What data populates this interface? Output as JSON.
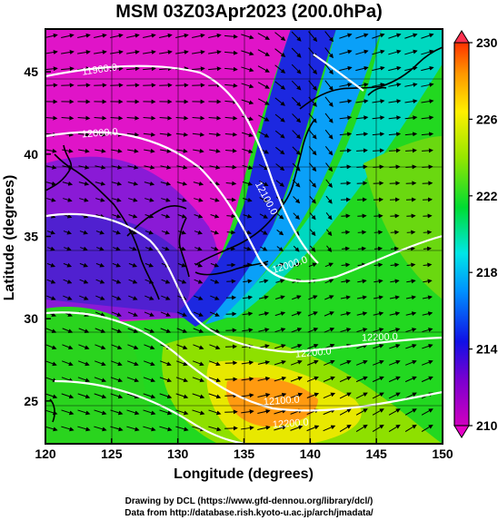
{
  "title": "MSM 03Z03Apr2023 (200.0hPa)",
  "axes": {
    "xlabel": "Longitude (degrees)",
    "ylabel": "Latitude  (degrees)",
    "x_ticks": [
      "120",
      "125",
      "130",
      "135",
      "140",
      "145",
      "150"
    ],
    "y_ticks": [
      "25",
      "30",
      "35",
      "40",
      "45"
    ],
    "xlim": [
      120,
      150
    ],
    "ylim": [
      22.4,
      47.6
    ]
  },
  "colorbar": {
    "tick_labels": [
      "230",
      "226",
      "222",
      "218",
      "214",
      "210"
    ],
    "range": [
      210,
      230
    ],
    "colors": [
      "#e600c8",
      "#9600d2",
      "#0a14e6",
      "#00b4ff",
      "#00e6c8",
      "#00dc32",
      "#96e600",
      "#fff000",
      "#ff9600",
      "#ff3200"
    ]
  },
  "contours": {
    "labels": [
      "11900.0",
      "12000.0",
      "12100.0",
      "12200.0",
      "12000.0",
      "12100.0",
      "12200.0",
      "12200.0"
    ]
  },
  "credits": {
    "line1": "Drawing by DCL (https://www.gfd-dennou.org/library/dcl/)",
    "line2": "Data from http://database.rish.kyoto-u.ac.jp/arch/jmadata/"
  }
}
